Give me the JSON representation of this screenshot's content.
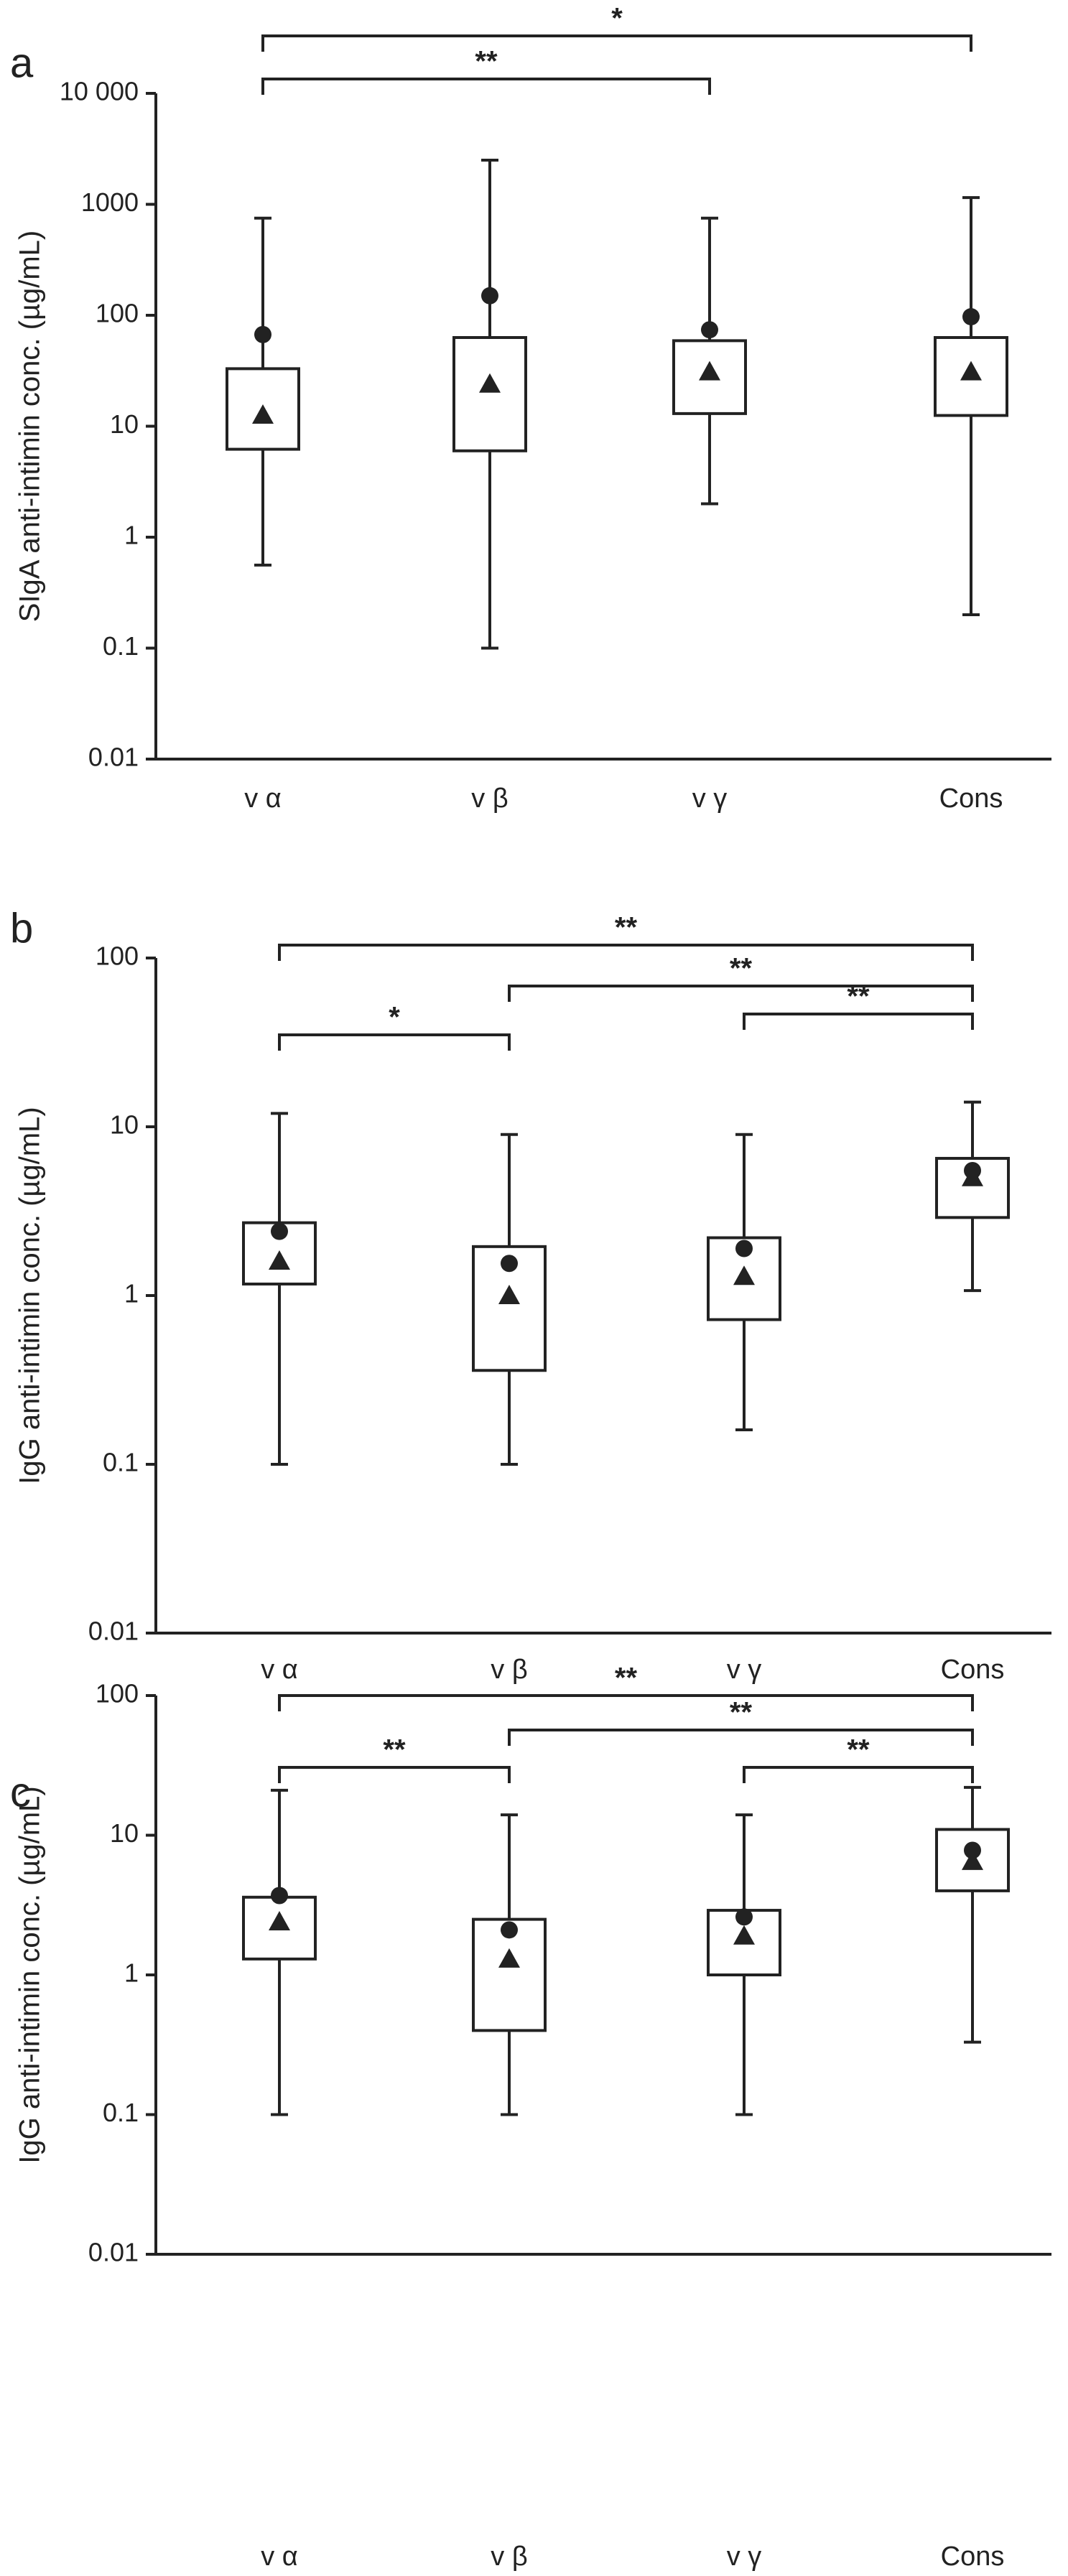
{
  "chart_data": [
    {
      "type": "box",
      "panel": "a",
      "ylabel": "SIgA anti-intimin conc. (µg/mL)",
      "log_scale": true,
      "categories": [
        "v α",
        "v β",
        "v γ",
        "Cons"
      ],
      "ylim": [
        0.01,
        10000
      ],
      "yticks": [
        0.01,
        0.1,
        1,
        10,
        100,
        1000,
        {
          "value": 10000,
          "label": "10 000"
        }
      ],
      "color": "#222222",
      "boxes": [
        {
          "min": 0.56,
          "q1": 6.2,
          "q3": 33,
          "max": 750,
          "circle": 67,
          "triangle": 12.6
        },
        {
          "min": 0.1,
          "q1": 6,
          "q3": 63,
          "max": 2500,
          "circle": 150,
          "triangle": 24
        },
        {
          "min": 2,
          "q1": 13,
          "q3": 59,
          "max": 750,
          "circle": 74,
          "triangle": 31
        },
        {
          "min": 0.2,
          "q1": 12.5,
          "q3": 63,
          "max": 1150,
          "circle": 97,
          "triangle": 31
        }
      ],
      "annotations": [
        {
          "from": 0,
          "to": 3,
          "label": "*"
        },
        {
          "from": 0,
          "to": 2,
          "label": "**"
        }
      ]
    },
    {
      "type": "box",
      "panel": "b",
      "ylabel": "IgG anti-intimin conc. (µg/mL)",
      "log_scale": true,
      "categories": [
        "v α",
        "v β",
        "v γ",
        "Cons"
      ],
      "ylim": [
        0.01,
        100
      ],
      "yticks": [
        0.01,
        0.1,
        1,
        10,
        100
      ],
      "color": "#222222",
      "boxes": [
        {
          "min": 0.1,
          "q1": 1.17,
          "q3": 2.7,
          "max": 12,
          "circle": 2.4,
          "triangle": 1.6
        },
        {
          "min": 0.1,
          "q1": 0.36,
          "q3": 1.95,
          "max": 9,
          "circle": 1.55,
          "triangle": 1.0
        },
        {
          "min": 0.16,
          "q1": 0.72,
          "q3": 2.2,
          "max": 9,
          "circle": 1.9,
          "triangle": 1.3
        },
        {
          "min": 1.07,
          "q1": 2.9,
          "q3": 6.5,
          "max": 14,
          "circle": 5.5,
          "triangle": 5.0
        }
      ],
      "annotations": [
        {
          "from": 0,
          "to": 3,
          "label": "**"
        },
        {
          "from": 1,
          "to": 3,
          "label": "**"
        },
        {
          "from": 2,
          "to": 3,
          "label": "**"
        },
        {
          "from": 0,
          "to": 1,
          "label": "*"
        }
      ]
    },
    {
      "type": "box",
      "panel": "c",
      "ylabel": "IgG anti-intimin conc. (µg/mL)",
      "log_scale": true,
      "categories": [
        "v α",
        "v β",
        "v γ",
        "Cons"
      ],
      "ylim": [
        0.01,
        100
      ],
      "yticks": [
        0.01,
        0.1,
        1,
        10,
        100
      ],
      "color": "#222222",
      "boxes": [
        {
          "min": 0.1,
          "q1": 1.3,
          "q3": 3.6,
          "max": 21,
          "circle": 3.7,
          "triangle": 2.4
        },
        {
          "min": 0.1,
          "q1": 0.4,
          "q3": 2.5,
          "max": 14,
          "circle": 2.1,
          "triangle": 1.3
        },
        {
          "min": 0.1,
          "q1": 1.0,
          "q3": 2.9,
          "max": 14,
          "circle": 2.6,
          "triangle": 1.9
        },
        {
          "min": 0.33,
          "q1": 4.0,
          "q3": 11,
          "max": 22,
          "circle": 7.8,
          "triangle": 6.5
        }
      ],
      "annotations": [
        {
          "from": 0,
          "to": 3,
          "label": "**"
        },
        {
          "from": 1,
          "to": 3,
          "label": "**"
        },
        {
          "from": 0,
          "to": 1,
          "label": "**"
        },
        {
          "from": 2,
          "to": 3,
          "label": "**"
        }
      ]
    }
  ]
}
